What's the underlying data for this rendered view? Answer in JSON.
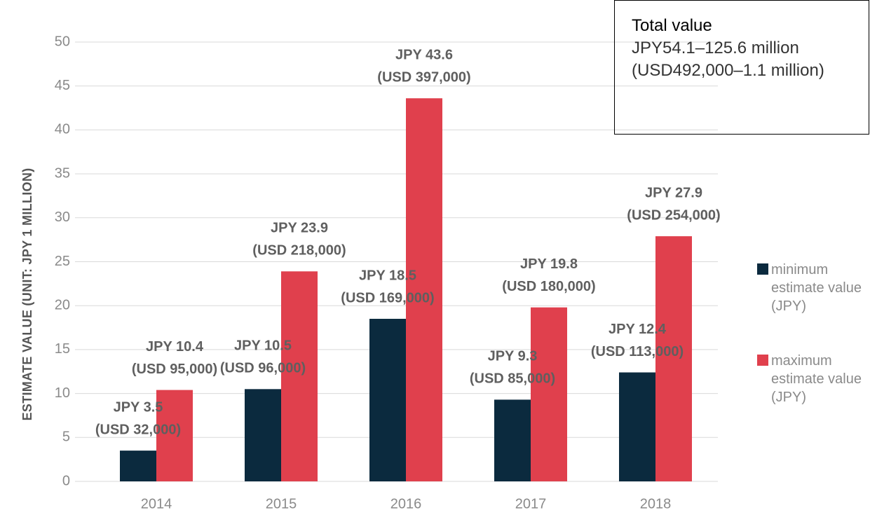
{
  "chart_data": {
    "type": "bar",
    "y_label": "ESTIMATE VALUE (UNIT: JPY 1 MILLION)",
    "categories": [
      "2014",
      "2015",
      "2016",
      "2017",
      "2018"
    ],
    "series": [
      {
        "name": "minimum estimate value (JPY)",
        "color": "#0b2a3e",
        "values": [
          3.5,
          10.5,
          18.5,
          9.3,
          12.4
        ],
        "value_labels": [
          [
            "JPY 3.5",
            "(USD 32,000)"
          ],
          [
            "JPY 10.5",
            "(USD 96,000)"
          ],
          [
            "JPY 18.5",
            "(USD 169,000)"
          ],
          [
            "JPY 9.3",
            "(USD 85,000)"
          ],
          [
            "JPY 12.4",
            "(USD 113,000)"
          ]
        ]
      },
      {
        "name": "maximum estimate value (JPY)",
        "color": "#e0404d",
        "values": [
          10.4,
          23.9,
          43.6,
          19.8,
          27.9
        ],
        "value_labels": [
          [
            "JPY 10.4",
            "(USD 95,000)"
          ],
          [
            "JPY 23.9",
            "(USD 218,000)"
          ],
          [
            "JPY 43.6",
            "(USD 397,000)"
          ],
          [
            "JPY 19.8",
            "(USD 180,000)"
          ],
          [
            "JPY 27.9",
            "(USD 254,000)"
          ]
        ]
      }
    ],
    "ylim": [
      0,
      50
    ],
    "yticks": [
      0,
      5,
      10,
      15,
      20,
      25,
      30,
      35,
      40,
      45,
      50
    ],
    "grid": true,
    "legend": "right",
    "annotation": {
      "title": "Total value",
      "text": "JPY54.1–125.6 million (USD492,000–1.1 million)"
    }
  }
}
